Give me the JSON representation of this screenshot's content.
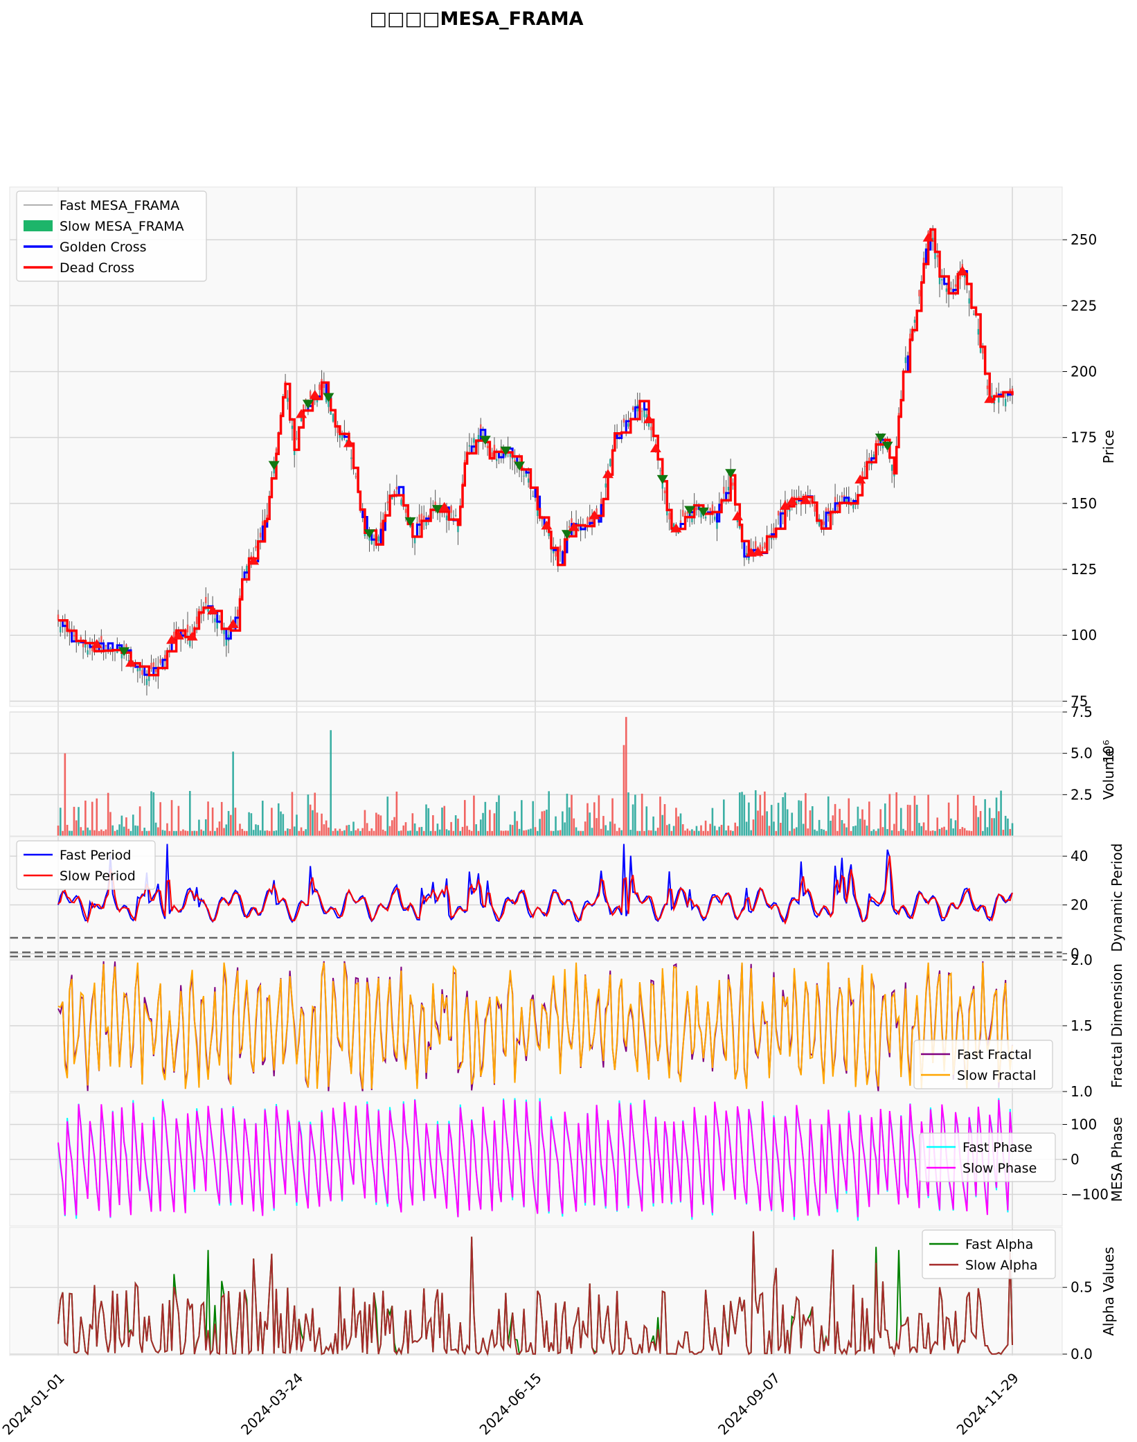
{
  "chart_data": {
    "type": "line",
    "title": "□□□□MESA_FRAMA",
    "x_ticks": [
      "2024-01-01",
      "2024-03-24",
      "2024-06-15",
      "2024-09-07",
      "2024-11-29"
    ],
    "colors": {
      "fast_frama": "#808080",
      "slow_frama": "#26a69a",
      "golden": "#0000ff",
      "dead": "#ff0000",
      "up_marker": "#117711",
      "down_marker": "#ff1111",
      "fast_period": "#0000ff",
      "slow_period": "#ff0000",
      "fast_fractal": "#800080",
      "slow_fractal": "#ffa500",
      "fast_phase": "#00ffff",
      "slow_phase": "#ff00ff",
      "fast_alpha": "#008000",
      "slow_alpha": "#a52a2a"
    },
    "panels": [
      {
        "id": "price",
        "ylabel": "Price",
        "ylim": [
          73,
          270
        ],
        "yticks": [
          "75",
          "100",
          "125",
          "150",
          "175",
          "200",
          "225",
          "250"
        ],
        "legend": [
          "Fast MESA_FRAMA",
          "Slow MESA_FRAMA",
          "Golden Cross",
          "Dead Cross"
        ],
        "legend_position": "upper-left",
        "anchors_x": [
          0,
          8,
          15,
          22,
          30,
          38,
          45,
          52,
          58,
          62,
          65,
          68,
          72,
          75,
          79,
          82,
          86,
          92,
          100,
          104,
          108,
          112,
          116,
          122,
          128,
          135,
          140,
          145,
          150,
          156,
          160,
          168,
          176,
          180,
          186,
          190,
          198,
          206,
          214,
          220,
          226,
          232,
          238,
          242,
          245,
          250,
          256,
          262,
          270,
          280,
          290,
          296,
          302,
          310,
          318,
          322,
          330,
          336,
          340,
          346,
          350,
          356,
          360,
          364,
          368,
          372,
          376,
          380,
          384,
          388,
          392,
          398,
          404,
          410,
          416,
          420
        ],
        "anchors_y": [
          105,
          97,
          95,
          96,
          93,
          84,
          88,
          101,
          99,
          108,
          113,
          108,
          102,
          100,
          108,
          125,
          130,
          145,
          195,
          172,
          186,
          190,
          195,
          180,
          172,
          140,
          135,
          150,
          155,
          138,
          145,
          148,
          143,
          170,
          177,
          168,
          170,
          160,
          142,
          128,
          141,
          141,
          145,
          160,
          175,
          180,
          188,
          177,
          140,
          148,
          145,
          160,
          130,
          133,
          145,
          149,
          152,
          142,
          147,
          151,
          150,
          165,
          172,
          175,
          163,
          200,
          215,
          235,
          255,
          238,
          230,
          238,
          220,
          190,
          192,
          190
        ]
      },
      {
        "id": "volume",
        "ylabel": "Volume",
        "ylabel_exponent": "10⁶",
        "ylim": [
          0,
          7.5
        ],
        "yticks": [
          "2.5",
          "5.0",
          "7.5"
        ]
      },
      {
        "id": "period",
        "ylabel": "Dynamic Period",
        "ylim": [
          -2,
          48
        ],
        "yticks": [
          "0",
          "20",
          "40"
        ],
        "legend": [
          "Fast Period",
          "Slow Period"
        ],
        "legend_position": "upper-left"
      },
      {
        "id": "fractal",
        "ylabel": "Fractal Dimension",
        "ylim": [
          1.0,
          2.0
        ],
        "yticks": [
          "1.0",
          "1.5",
          "2.0"
        ],
        "legend": [
          "Fast Fractal",
          "Slow Fractal"
        ],
        "legend_position": "lower-right"
      },
      {
        "id": "phase",
        "ylabel": "MESA Phase",
        "ylim": [
          -190,
          190
        ],
        "yticks": [
          "−100",
          "0",
          "100"
        ],
        "legend": [
          "Fast Phase",
          "Slow Phase"
        ],
        "legend_position": "right"
      },
      {
        "id": "alpha",
        "ylabel": "Alpha Values",
        "ylim": [
          -0.01,
          0.95
        ],
        "yticks": [
          "0.0",
          "0.5"
        ],
        "legend": [
          "Fast Alpha",
          "Slow Alpha"
        ],
        "legend_position": "upper-right"
      }
    ]
  }
}
